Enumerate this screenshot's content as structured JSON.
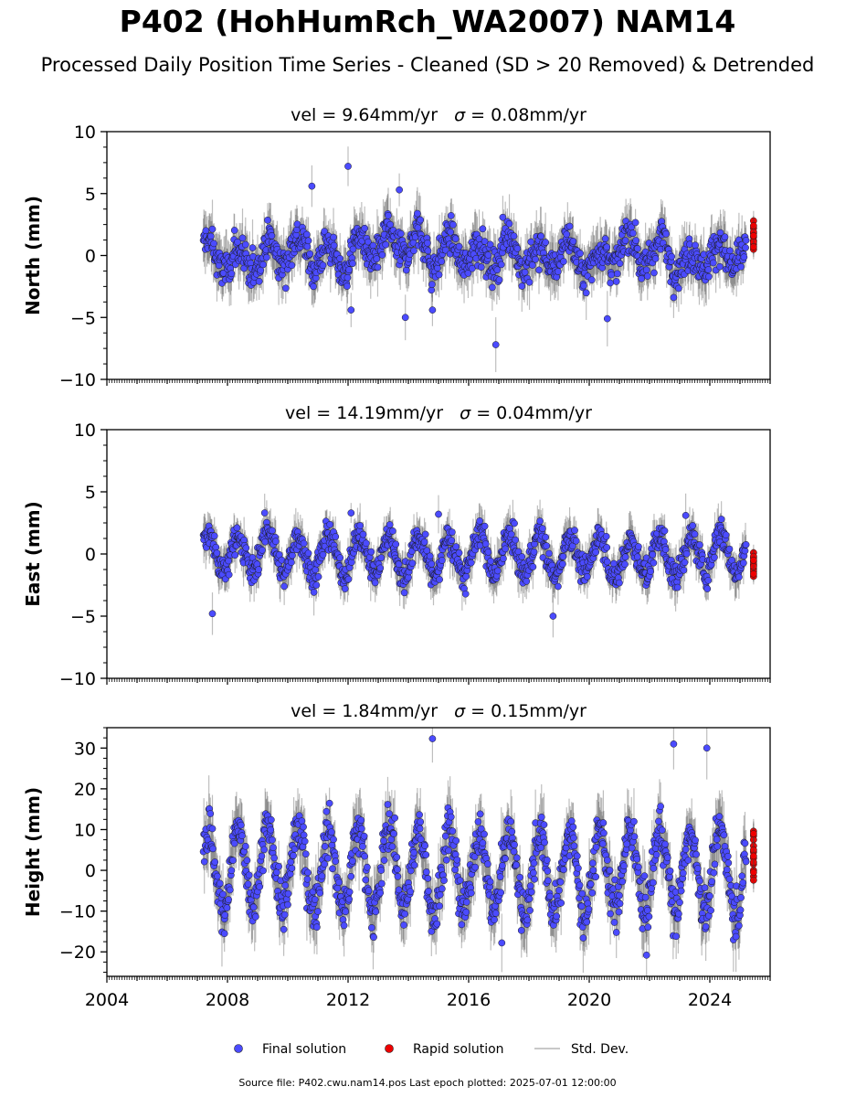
{
  "figure": {
    "title": "P402 (HohHumRch_WA2007) NAM14",
    "subtitle": "Processed Daily Position Time Series - Cleaned (SD > 20 Removed) & Detrended",
    "footer": "Source file: P402.cwu.nam14.pos  Last epoch plotted: 2025-07-01 12:00:00"
  },
  "legend": {
    "placement": "bottom-center",
    "items": [
      {
        "label": "Final solution",
        "color": "#4b4bff"
      },
      {
        "label": "Rapid solution",
        "color": "#ee0000"
      },
      {
        "label": "Std. Dev.",
        "color": "#c8c8c8"
      }
    ]
  },
  "chart_data": [
    {
      "type": "scatter",
      "component": "north",
      "title_prefix": "vel = ",
      "velocity": "9.64mm/yr",
      "sigma_label": "σ = ",
      "sigma": "0.08mm/yr",
      "ylabel": "North (mm)",
      "xlim": [
        2004,
        2026
      ],
      "ylim": [
        -10,
        10
      ],
      "yticks": [
        10,
        5,
        0,
        -5,
        -10
      ],
      "xticks": [],
      "series_amplitude": 1.2,
      "series_noise": 1.0,
      "series_wander": 1.2,
      "series_sd": 1.6,
      "outliers": [
        {
          "x": 2012.0,
          "y": 7.2
        },
        {
          "x": 2016.9,
          "y": -7.2
        },
        {
          "x": 2013.9,
          "y": -5.0
        },
        {
          "x": 2014.8,
          "y": -4.4
        },
        {
          "x": 2012.1,
          "y": -4.4
        },
        {
          "x": 2020.6,
          "y": -5.1
        },
        {
          "x": 2010.8,
          "y": 5.6
        },
        {
          "x": 2013.7,
          "y": 5.3
        }
      ]
    },
    {
      "type": "scatter",
      "component": "east",
      "title_prefix": "vel = ",
      "velocity": "14.19mm/yr",
      "sigma_label": "σ = ",
      "sigma": "0.04mm/yr",
      "ylabel": "East (mm)",
      "xlim": [
        2004,
        2026
      ],
      "ylim": [
        -10,
        10
      ],
      "yticks": [
        10,
        5,
        0,
        -5,
        -10
      ],
      "xticks": [],
      "series_amplitude": 1.6,
      "series_noise": 0.8,
      "series_wander": 0.6,
      "series_sd": 1.3,
      "outliers": [
        {
          "x": 2012.1,
          "y": 3.3
        },
        {
          "x": 2007.5,
          "y": -4.8
        },
        {
          "x": 2015.0,
          "y": 3.2
        },
        {
          "x": 2018.8,
          "y": -5.0
        },
        {
          "x": 2023.2,
          "y": 3.1
        }
      ]
    },
    {
      "type": "scatter",
      "component": "height",
      "title_prefix": "vel = ",
      "velocity": "1.84mm/yr",
      "sigma_label": "σ = ",
      "sigma": "0.15mm/yr",
      "ylabel": "Height (mm)",
      "xlim": [
        2004,
        2026
      ],
      "ylim": [
        -26,
        35
      ],
      "yticks": [
        30,
        20,
        10,
        0,
        -10,
        -20
      ],
      "xticks": [
        "2004",
        "2008",
        "2012",
        "2016",
        "2020",
        "2024"
      ],
      "series_amplitude": 10,
      "series_noise": 4,
      "series_wander": 2,
      "series_sd": 6,
      "outliers": [
        {
          "x": 2014.8,
          "y": 32.3
        },
        {
          "x": 2022.8,
          "y": 31.0
        },
        {
          "x": 2023.9,
          "y": 30.0
        },
        {
          "x": 2021.9,
          "y": -20.8
        },
        {
          "x": 2017.1,
          "y": -17.8
        },
        {
          "x": 2007.9,
          "y": -15.5
        }
      ]
    }
  ],
  "final_solution": {
    "start": 2007.2,
    "end": 2025.2
  },
  "rapid_solution": {
    "x": 2025.45,
    "north_values": [
      2.8,
      2.2,
      1.8,
      1.5,
      1.2,
      0.9,
      0.5,
      1.9,
      2.4,
      1.1,
      0.7,
      1.6
    ],
    "east_values": [
      0.1,
      -0.3,
      -0.6,
      -0.9,
      -1.2,
      -1.4,
      -1.8,
      -0.2,
      -0.8,
      -1.0,
      -0.5,
      -1.6
    ],
    "height_values": [
      9.6,
      8.5,
      7.5,
      6.0,
      4.5,
      3.0,
      1.5,
      0.0,
      -1.5,
      -2.4,
      5.0,
      2.0,
      9.0,
      3.5,
      -0.5
    ]
  }
}
